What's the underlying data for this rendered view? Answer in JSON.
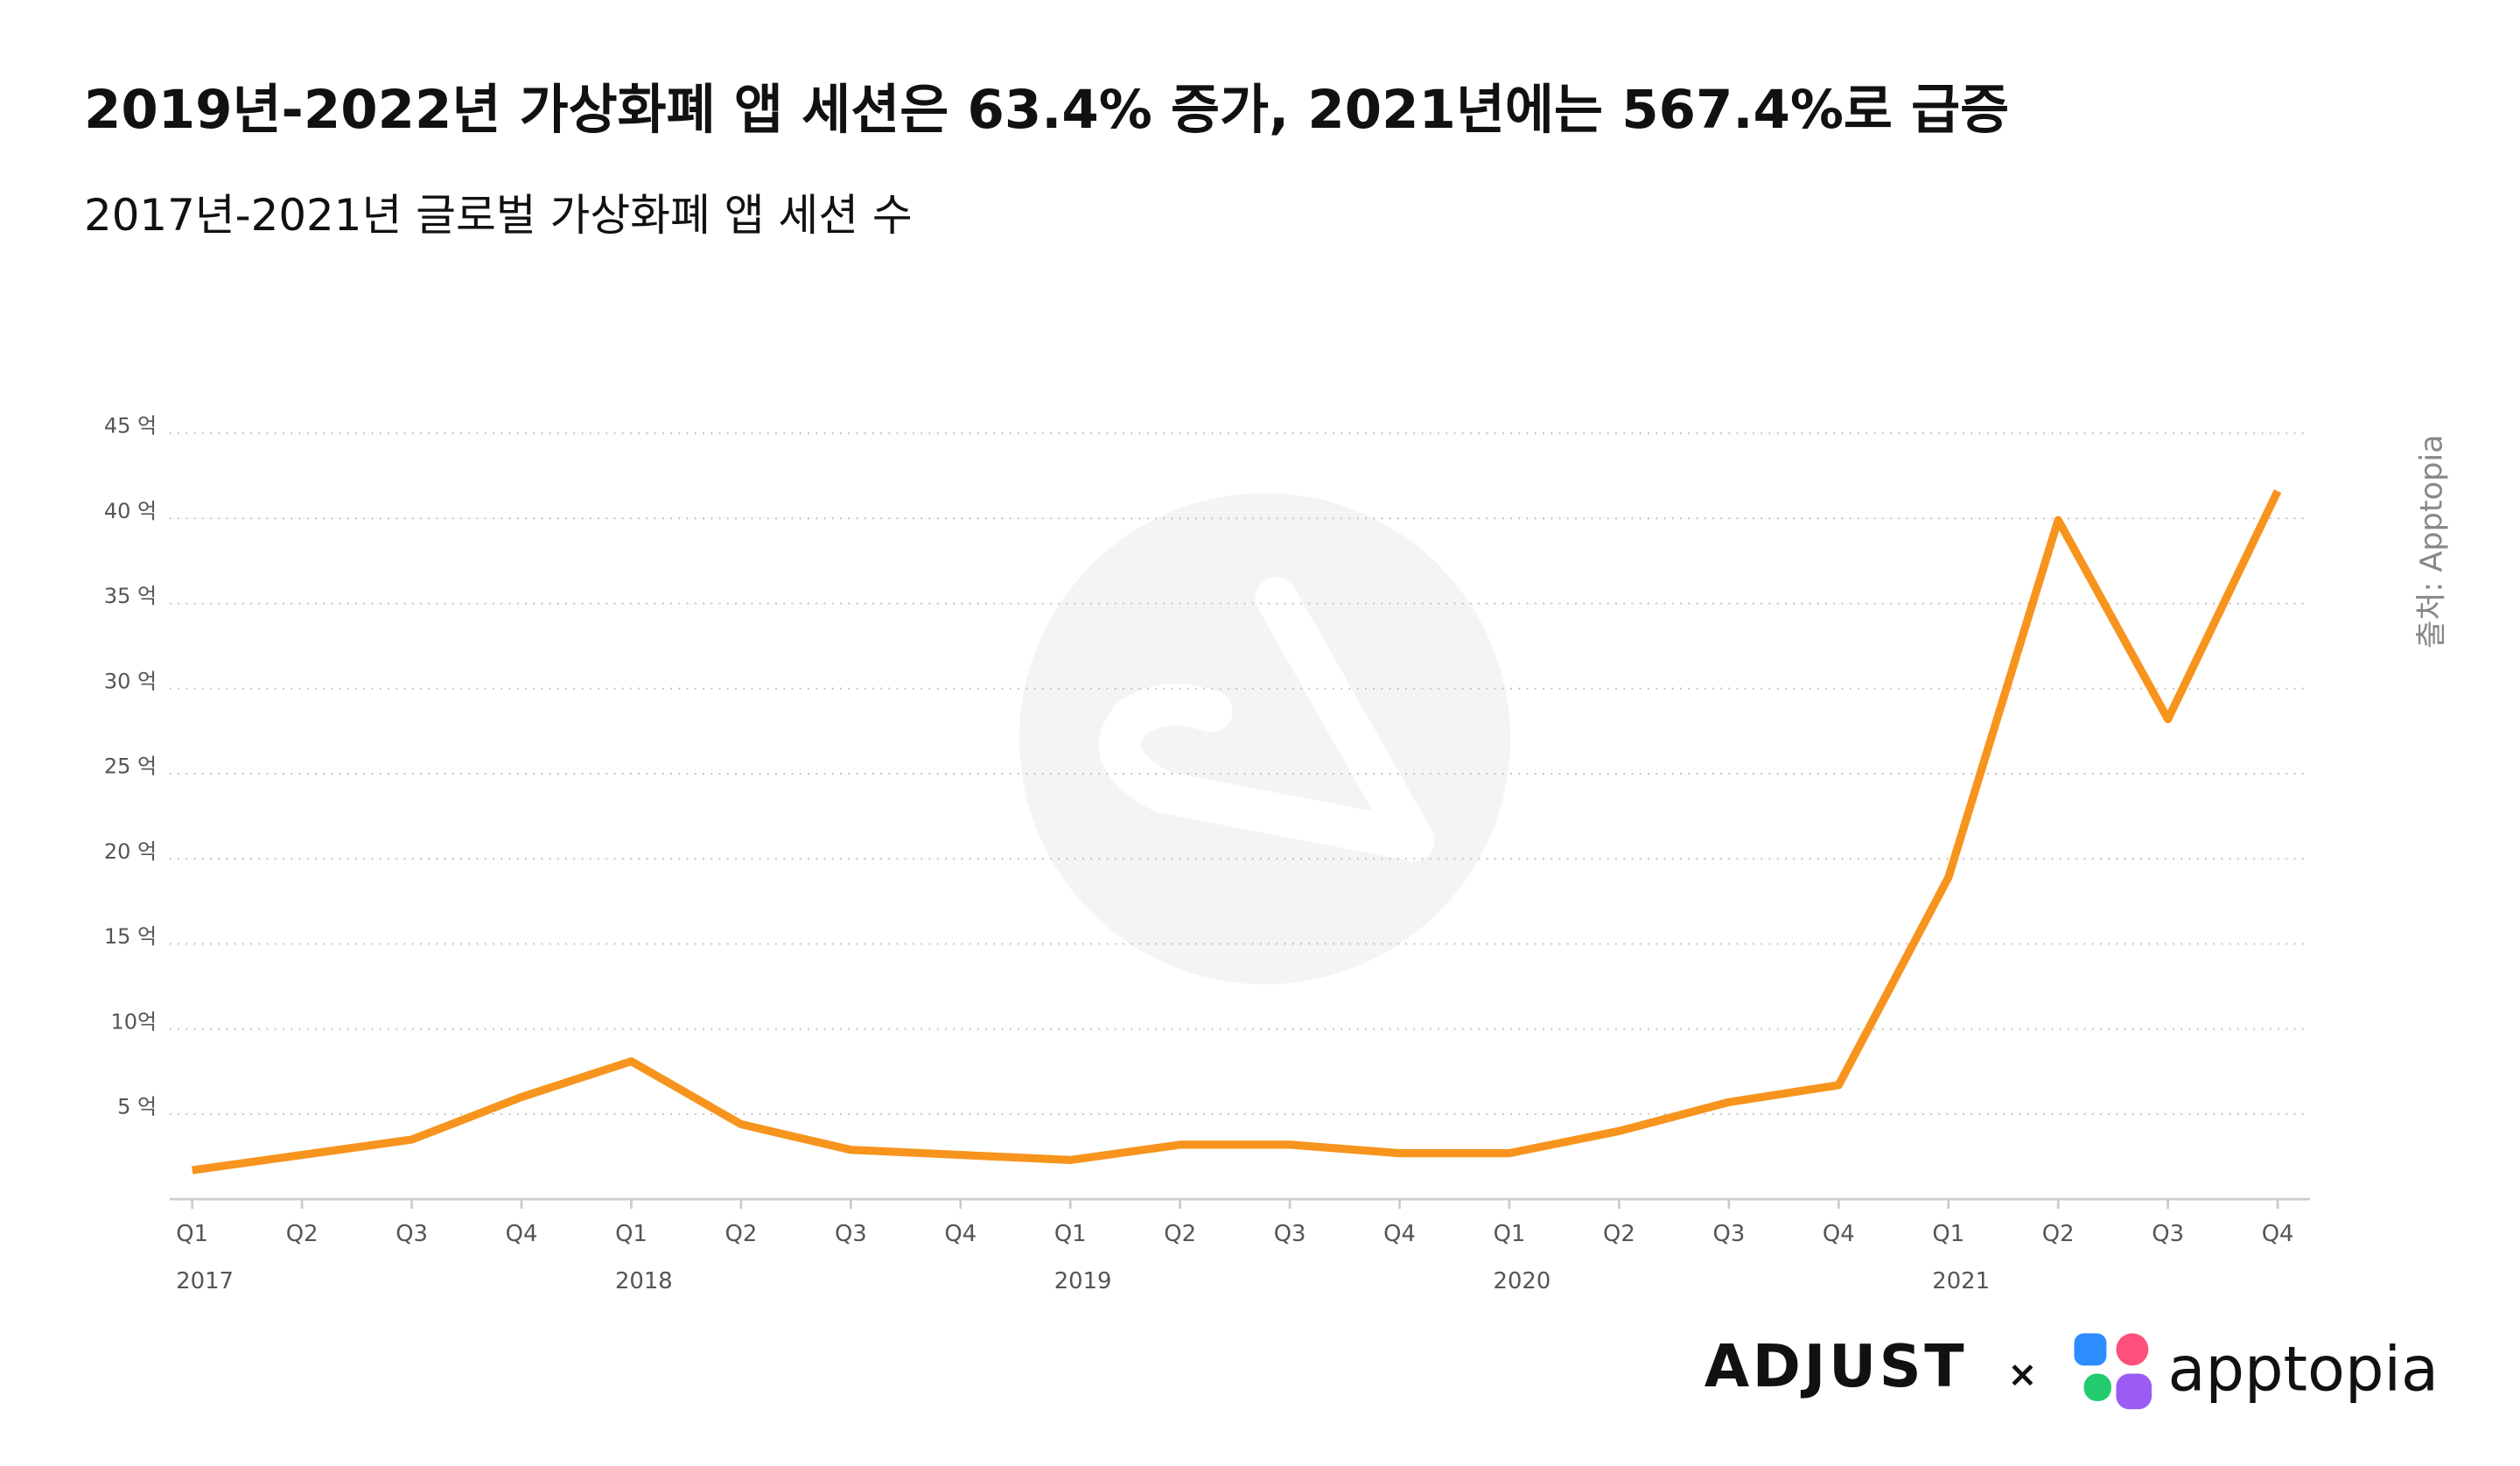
{
  "chart_data": {
    "type": "line",
    "title": "2019년-2022년 가상화폐 앱 세션은 63.4% 증가, 2021년에는 567.4%로 급증",
    "subtitle": "2017년-2021년 글로벌 가상화폐 앱 세션 수",
    "categories": [
      "Q1",
      "Q2",
      "Q3",
      "Q4",
      "Q1",
      "Q2",
      "Q3",
      "Q4",
      "Q1",
      "Q2",
      "Q3",
      "Q4",
      "Q1",
      "Q2",
      "Q3",
      "Q4",
      "Q1",
      "Q2",
      "Q3",
      "Q4"
    ],
    "category_groups": [
      "2017",
      null,
      null,
      null,
      "2018",
      null,
      null,
      null,
      "2019",
      null,
      null,
      null,
      "2020",
      null,
      null,
      null,
      "2021",
      null,
      null,
      null
    ],
    "series": [
      {
        "color": "#f7941d",
        "values": [
          1.7,
          2.6,
          3.5,
          6.0,
          8.1,
          4.4,
          2.9,
          2.6,
          2.3,
          3.2,
          3.2,
          2.7,
          2.7,
          4.0,
          5.7,
          6.7,
          18.9,
          39.9,
          28.2,
          41.6
        ]
      }
    ],
    "ylim": [
      0,
      45
    ],
    "yticks": [
      {
        "value": 5,
        "label": "5 억"
      },
      {
        "value": 10,
        "label": "10억"
      },
      {
        "value": 15,
        "label": "15 억"
      },
      {
        "value": 20,
        "label": "20 억"
      },
      {
        "value": 25,
        "label": "25 억"
      },
      {
        "value": 30,
        "label": "30 억"
      },
      {
        "value": 35,
        "label": "35 억"
      },
      {
        "value": 40,
        "label": "40 억"
      },
      {
        "value": 45,
        "label": "45 억"
      }
    ],
    "grid": true,
    "source": "출처: Apptopia"
  },
  "logos": {
    "left": "ADJUST",
    "separator": "×",
    "right": "apptopia"
  }
}
